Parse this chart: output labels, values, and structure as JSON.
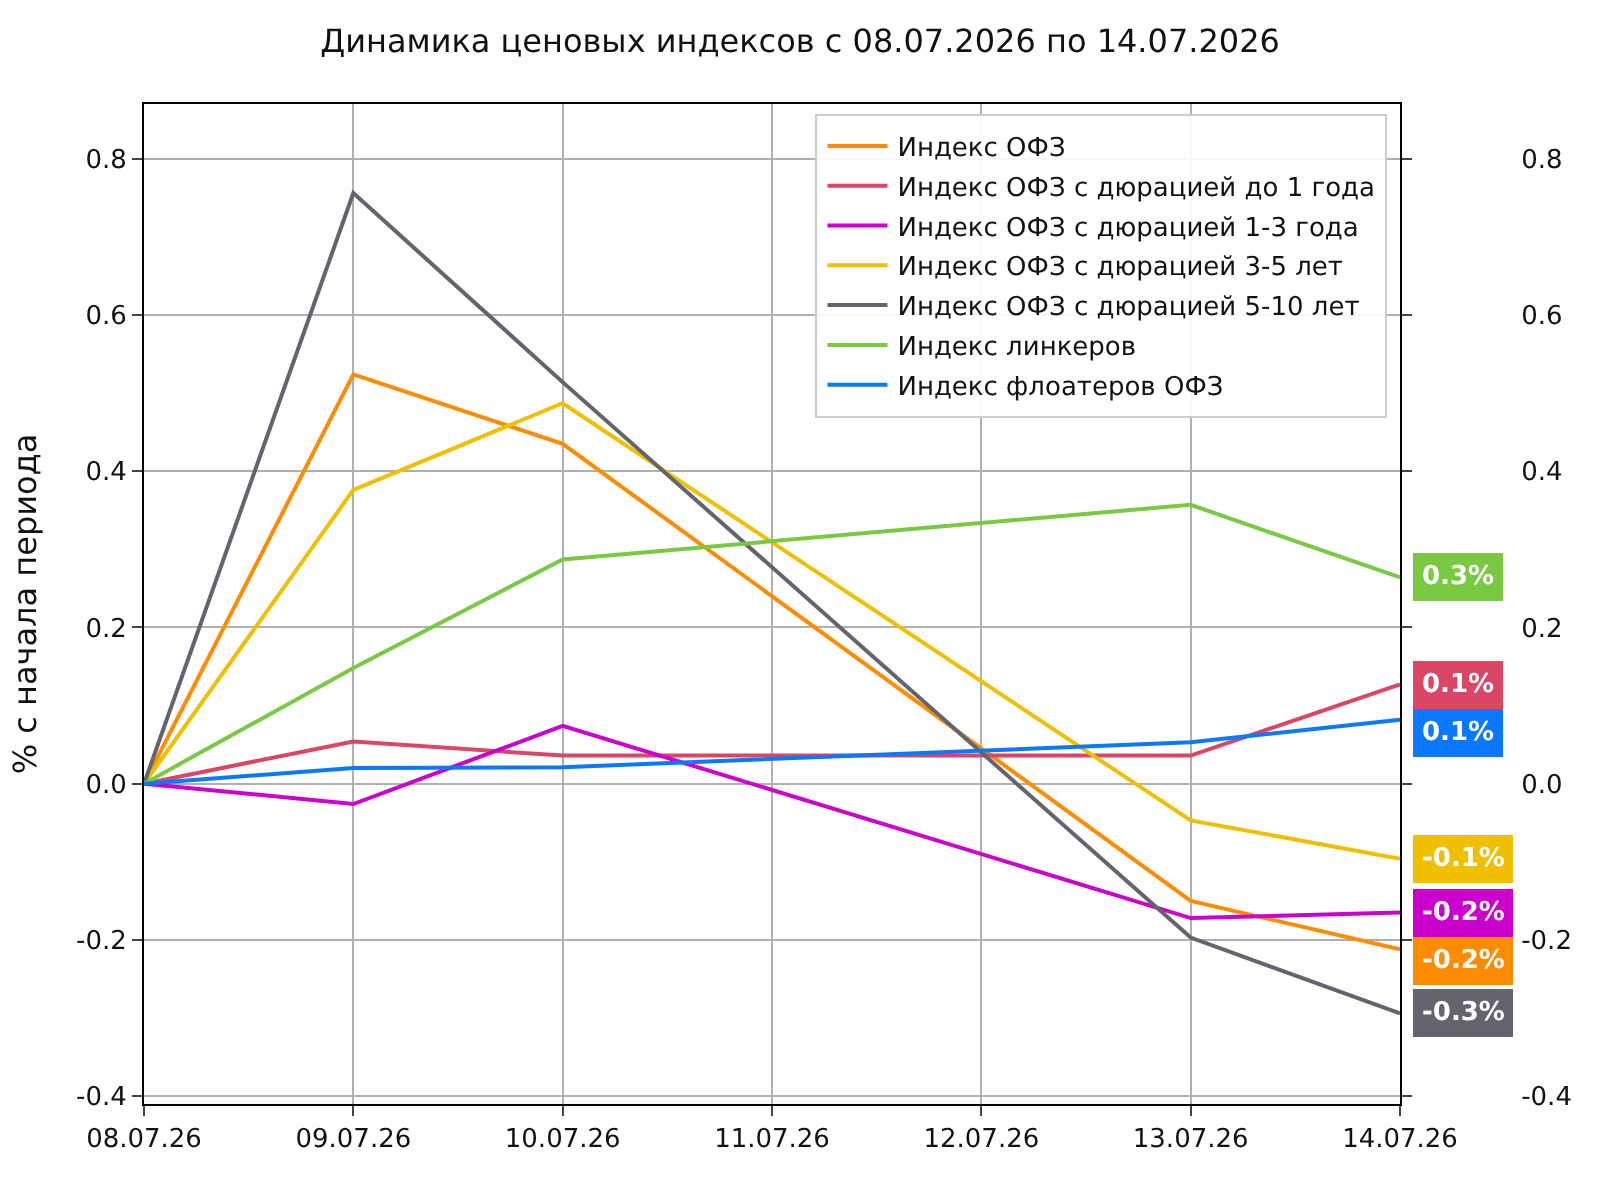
{
  "chart_data": {
    "type": "line",
    "title": "Динамика ценовых индексов с 08.07.2026 по 14.07.2026",
    "ylabel": "% с начала периода",
    "x": [
      "2026-07-08",
      "2026-07-09",
      "2026-07-10",
      "2026-07-13",
      "2026-07-14"
    ],
    "xlim": [
      "2026-07-08",
      "2026-07-14"
    ],
    "xticks": [
      {
        "value": "2026-07-08",
        "label": "08.07.26"
      },
      {
        "value": "2026-07-09",
        "label": "09.07.26"
      },
      {
        "value": "2026-07-10",
        "label": "10.07.26"
      },
      {
        "value": "2026-07-11",
        "label": "11.07.26"
      },
      {
        "value": "2026-07-12",
        "label": "12.07.26"
      },
      {
        "value": "2026-07-13",
        "label": "13.07.26"
      },
      {
        "value": "2026-07-14",
        "label": "14.07.26"
      }
    ],
    "ylim": [
      -0.41,
      0.87
    ],
    "yticks": [
      -0.4,
      -0.2,
      {
        "value": 0,
        "label": "0.0"
      },
      0.2,
      0.4,
      0.6,
      0.8
    ],
    "y2lim": [
      -0.41,
      0.87
    ],
    "y2ticks": [
      -0.4,
      -0.2,
      {
        "value": 0,
        "label": "0.0"
      },
      0.2,
      0.4,
      0.6,
      0.8
    ],
    "grid": true,
    "legend": "top right",
    "line_style": "solid",
    "series": [
      {
        "name": "Индекс ОФЗ",
        "color": "#ff8c00",
        "values": [
          0,
          0.524,
          0.435,
          -0.15,
          -0.212
        ],
        "value_labels": [
          null,
          null,
          null,
          null,
          "-0.2%"
        ]
      },
      {
        "name": "Индекс ОФЗ с дюрацией до 1 года",
        "color": "#dc4666",
        "values": [
          0,
          0.054,
          0.036,
          0.036,
          0.127
        ],
        "value_labels": [
          null,
          null,
          null,
          null,
          "0.1%"
        ]
      },
      {
        "name": "Индекс ОФЗ с дюрацией 1-3 года",
        "color": "#cc00cc",
        "values": [
          0,
          -0.026,
          0.074,
          -0.172,
          -0.165
        ],
        "value_labels": [
          null,
          null,
          null,
          null,
          "-0.2%"
        ]
      },
      {
        "name": "Индекс ОФЗ с дюрацией 3-5 лет",
        "color": "#f0c000",
        "values": [
          0,
          0.376,
          0.487,
          -0.047,
          -0.096
        ],
        "value_labels": [
          null,
          null,
          null,
          null,
          "-0.1%"
        ]
      },
      {
        "name": "Индекс ОФЗ с дюрацией 5-10 лет",
        "color": "#64646e",
        "values": [
          0,
          0.756,
          0.514,
          -0.197,
          -0.294
        ],
        "value_labels": [
          null,
          null,
          null,
          null,
          "-0.3%"
        ]
      },
      {
        "name": "Индекс линкеров",
        "color": "#7ac943",
        "values": [
          0,
          0.148,
          0.287,
          0.357,
          0.264
        ],
        "value_labels": [
          null,
          null,
          null,
          null,
          "0.3%"
        ]
      },
      {
        "name": "Индекс флоатеров ОФЗ",
        "color": "#0a78ff",
        "values": [
          0,
          0.02,
          0.021,
          0.053,
          0.082
        ],
        "value_labels": [
          null,
          null,
          null,
          null,
          "0.1%"
        ]
      }
    ]
  }
}
